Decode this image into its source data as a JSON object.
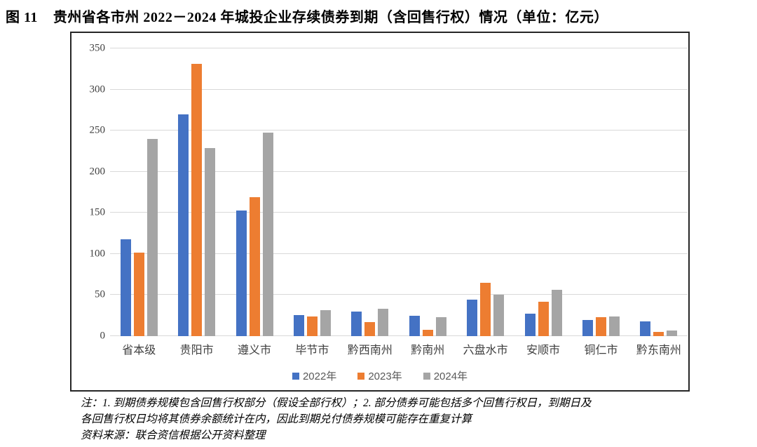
{
  "title": {
    "prefix": "图 11",
    "text": "贵州省各市州 2022－2024 年城投企业存续债券到期（含回售行权）情况（单位：亿元）"
  },
  "chart_data": {
    "type": "bar",
    "title": "贵州省各市州 2022－2024 年城投企业存续债券到期（含回售行权）情况",
    "unit": "亿元",
    "categories": [
      "省本级",
      "贵阳市",
      "遵义市",
      "毕节市",
      "黔西南州",
      "黔南州",
      "六盘水市",
      "安顺市",
      "铜仁市",
      "黔东南州"
    ],
    "series": [
      {
        "name": "2022年",
        "color": "#4472C4",
        "values": [
          118,
          270,
          153,
          26,
          30,
          25,
          44,
          27,
          20,
          18
        ]
      },
      {
        "name": "2023年",
        "color": "#ED7D31",
        "values": [
          102,
          331,
          169,
          24,
          17,
          8,
          65,
          42,
          23,
          5
        ]
      },
      {
        "name": "2024年",
        "color": "#A5A5A5",
        "values": [
          240,
          229,
          248,
          32,
          33,
          23,
          50,
          56,
          24,
          7
        ]
      }
    ],
    "ylim": [
      0,
      350
    ],
    "yticks": [
      0,
      50,
      100,
      150,
      200,
      250,
      300,
      350
    ],
    "grid": true,
    "legend_position": "bottom"
  },
  "notes": {
    "line1": "注：1. 到期债券规模包含回售行权部分（假设全部行权）；2. 部分债券可能包括多个回售行权日，到期日及",
    "line2": "各回售行权日均将其债券余额统计在内，因此到期兑付债券规模可能存在重复计算",
    "source": "资料来源：联合资信根据公开资料整理"
  }
}
